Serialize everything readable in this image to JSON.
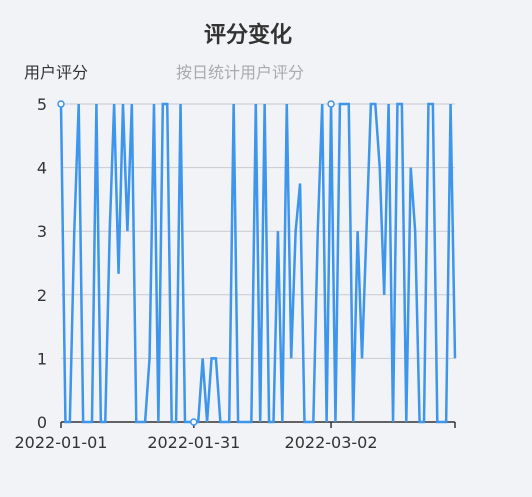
{
  "chart_data": {
    "type": "line",
    "title": "评分变化",
    "subtitle": "按日统计用户评分",
    "series": [
      {
        "name": "用户评分",
        "color": "#3d95ec",
        "values": [
          5,
          0,
          0,
          3,
          5,
          0,
          0,
          0,
          5,
          0,
          0,
          3,
          5,
          2.33,
          5,
          3,
          5,
          0,
          0,
          0,
          1,
          5,
          0,
          5,
          5,
          0,
          0,
          5,
          0,
          0,
          0,
          0,
          1,
          0,
          1,
          1,
          0,
          0,
          0,
          5,
          0,
          0,
          0,
          0,
          5,
          0,
          5,
          0,
          0,
          3,
          0,
          5,
          1,
          3,
          3.75,
          0,
          0,
          0,
          3,
          5,
          0,
          5,
          0,
          5,
          5,
          5,
          0,
          3,
          1,
          3,
          5,
          5,
          4,
          2,
          5,
          0,
          5,
          5,
          0,
          4,
          3,
          0,
          0,
          5,
          5,
          0,
          0,
          0,
          5,
          1
        ]
      }
    ],
    "x_start": "2022-01-01",
    "x_tick_labels": [
      "2022-01-01",
      "2022-01-31",
      "2022-03-02"
    ],
    "y_ticks": [
      0,
      1,
      2,
      3,
      4,
      5
    ],
    "ylim": [
      0,
      5
    ],
    "marker_indices": [
      0,
      30,
      61
    ],
    "grid": true,
    "legend_position": "top-left"
  }
}
